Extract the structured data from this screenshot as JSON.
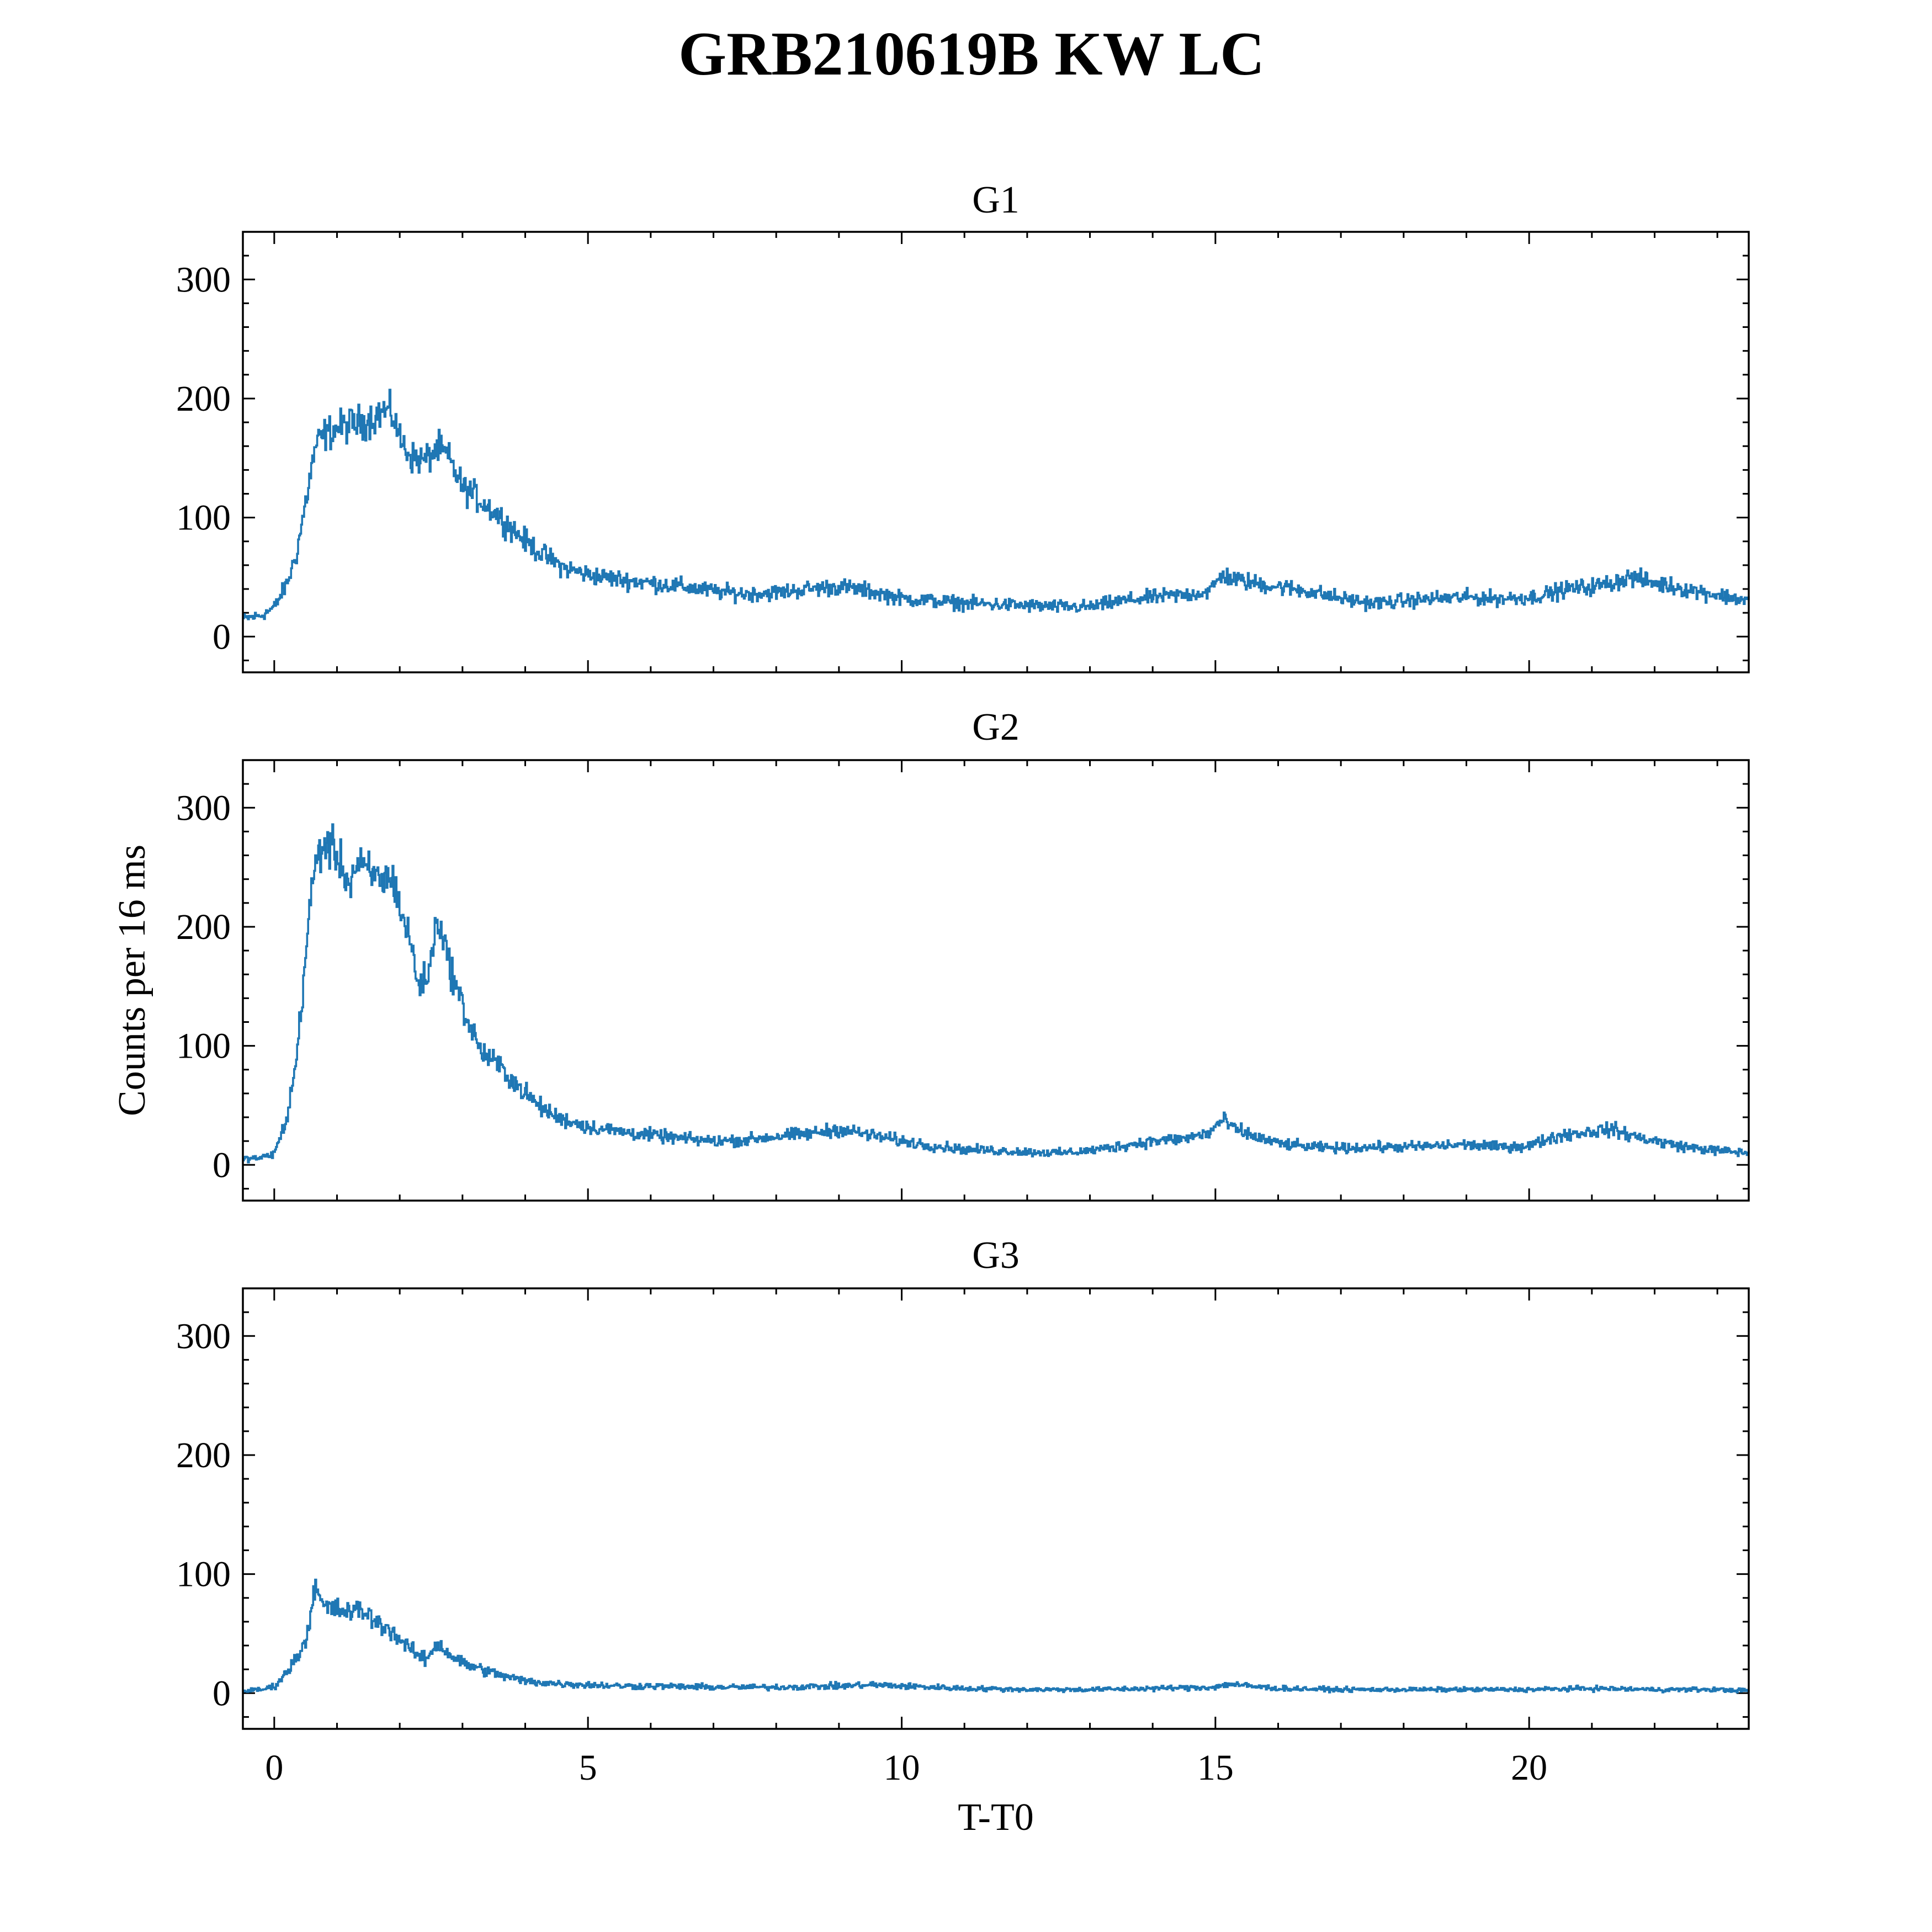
{
  "chart_data": {
    "type": "line",
    "title": "GRB210619B KW LC",
    "xlabel": "T-T0",
    "ylabel": "Counts per 16 ms",
    "xlim": [
      -0.5,
      23.5
    ],
    "ylim": [
      -30,
      340
    ],
    "x_ticks": [
      0,
      5,
      10,
      15,
      20
    ],
    "x_tick_labels": [
      "0",
      "5",
      "10",
      "15",
      "20"
    ],
    "y_ticks": [
      0,
      100,
      200,
      300
    ],
    "y_tick_labels": [
      "0",
      "100",
      "200",
      "300"
    ],
    "grid": false,
    "color": "#1f77b4",
    "step": "pre",
    "panels": [
      {
        "name": "G1",
        "x": [
          -0.5,
          -0.2,
          0.0,
          0.2,
          0.35,
          0.45,
          0.55,
          0.65,
          0.8,
          1.0,
          1.2,
          1.4,
          1.6,
          1.75,
          1.9,
          2.0,
          2.2,
          2.4,
          2.6,
          2.75,
          3.0,
          3.2,
          3.5,
          3.8,
          4.0,
          4.3,
          4.6,
          5.0,
          5.5,
          6.0,
          6.5,
          7.0,
          7.5,
          8.0,
          8.5,
          9.0,
          9.5,
          10.0,
          10.5,
          11.0,
          11.5,
          12.0,
          12.5,
          13.0,
          13.5,
          14.0,
          14.5,
          14.9,
          15.1,
          15.3,
          15.6,
          16.0,
          16.5,
          17.0,
          17.5,
          18.0,
          18.5,
          19.0,
          19.5,
          20.0,
          20.3,
          20.6,
          21.0,
          21.3,
          21.6,
          22.0,
          22.5,
          23.0,
          23.5
        ],
        "y": [
          15,
          18,
          25,
          45,
          70,
          100,
          130,
          160,
          170,
          175,
          178,
          180,
          185,
          190,
          185,
          165,
          150,
          148,
          158,
          152,
          125,
          118,
          105,
          90,
          80,
          68,
          58,
          52,
          48,
          45,
          42,
          38,
          36,
          37,
          40,
          42,
          38,
          32,
          30,
          28,
          27,
          26,
          25,
          25,
          30,
          33,
          35,
          38,
          52,
          48,
          45,
          42,
          38,
          32,
          28,
          30,
          32,
          33,
          32,
          33,
          36,
          40,
          42,
          45,
          50,
          45,
          40,
          35,
          30
        ]
      },
      {
        "name": "G2",
        "x": [
          -0.5,
          -0.2,
          0.0,
          0.2,
          0.35,
          0.45,
          0.55,
          0.65,
          0.8,
          1.0,
          1.2,
          1.3,
          1.5,
          1.7,
          1.9,
          2.0,
          2.15,
          2.3,
          2.45,
          2.6,
          2.75,
          2.9,
          3.1,
          3.3,
          3.6,
          3.9,
          4.2,
          4.5,
          5.0,
          5.5,
          6.0,
          6.5,
          7.0,
          7.5,
          8.0,
          8.5,
          9.0,
          9.5,
          10.0,
          10.5,
          11.0,
          11.5,
          12.0,
          12.5,
          13.0,
          13.5,
          14.0,
          14.5,
          14.9,
          15.1,
          15.3,
          15.6,
          16.0,
          16.5,
          17.0,
          17.5,
          18.0,
          18.5,
          19.0,
          19.5,
          20.0,
          20.3,
          20.6,
          21.0,
          21.3,
          21.6,
          22.0,
          22.5,
          23.0,
          23.5
        ],
        "y": [
          5,
          6,
          10,
          40,
          90,
          150,
          210,
          255,
          270,
          260,
          235,
          252,
          245,
          240,
          240,
          215,
          190,
          150,
          160,
          210,
          175,
          148,
          118,
          95,
          82,
          65,
          50,
          40,
          32,
          28,
          25,
          22,
          20,
          21,
          24,
          26,
          30,
          25,
          20,
          16,
          13,
          12,
          11,
          10,
          12,
          16,
          20,
          22,
          27,
          38,
          30,
          24,
          18,
          15,
          14,
          15,
          15,
          16,
          17,
          15,
          16,
          22,
          26,
          28,
          30,
          25,
          20,
          15,
          12,
          10
        ]
      },
      {
        "name": "G3",
        "x": [
          -0.5,
          -0.2,
          0.0,
          0.2,
          0.35,
          0.45,
          0.55,
          0.62,
          0.7,
          0.8,
          1.0,
          1.2,
          1.4,
          1.6,
          1.8,
          2.0,
          2.2,
          2.4,
          2.6,
          2.8,
          3.0,
          3.3,
          3.6,
          4.0,
          4.5,
          5.0,
          5.5,
          6.0,
          7.0,
          8.0,
          9.0,
          9.5,
          10.0,
          11.0,
          12.0,
          13.0,
          14.0,
          15.0,
          15.2,
          15.5,
          16.0,
          17.0,
          18.0,
          19.0,
          20.0,
          21.0,
          22.0,
          23.0,
          23.5
        ],
        "y": [
          2,
          3,
          6,
          18,
          30,
          40,
          55,
          92,
          80,
          72,
          70,
          68,
          70,
          60,
          55,
          45,
          35,
          28,
          42,
          32,
          25,
          20,
          15,
          10,
          8,
          7,
          6,
          6,
          5,
          5,
          6,
          7,
          6,
          4,
          3,
          3,
          4,
          5,
          8,
          6,
          4,
          3,
          3,
          3,
          3,
          4,
          3,
          3,
          2
        ]
      }
    ]
  }
}
